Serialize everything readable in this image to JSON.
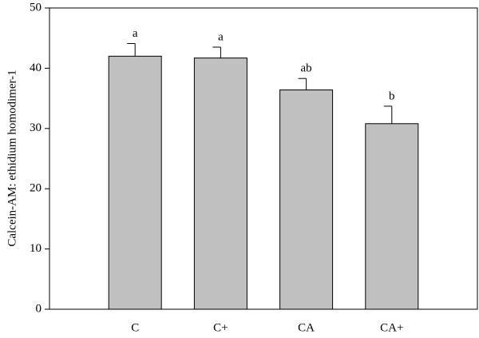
{
  "chart_data": {
    "type": "bar",
    "y_label": "Calcein-AM: ethidium homodimer-1",
    "categories": [
      "C",
      "C+",
      "CA",
      "CA+"
    ],
    "values": [
      42,
      41.7,
      36.4,
      30.8
    ],
    "errors": [
      2.1,
      1.8,
      1.9,
      2.9
    ],
    "annotations": [
      "a",
      "a",
      "ab",
      "b"
    ],
    "color": "#c0c0c0",
    "ylim": [
      0,
      50
    ],
    "yticks": [
      0,
      10,
      20,
      30,
      40,
      50
    ],
    "grid": false
  }
}
